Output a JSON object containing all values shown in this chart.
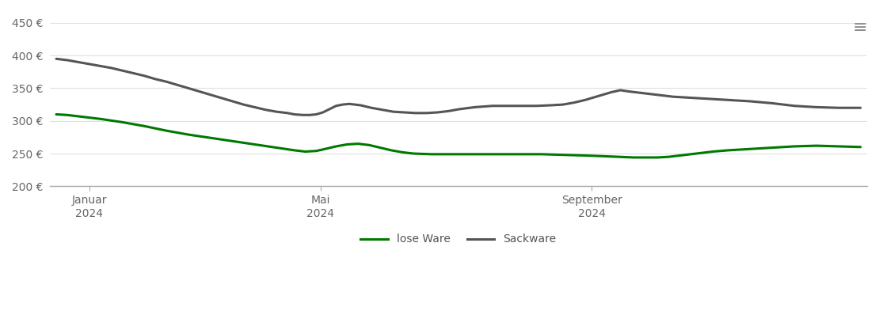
{
  "lose_ware": [
    [
      0,
      310
    ],
    [
      5,
      309
    ],
    [
      10,
      307
    ],
    [
      15,
      305
    ],
    [
      20,
      303
    ],
    [
      30,
      298
    ],
    [
      40,
      292
    ],
    [
      50,
      285
    ],
    [
      60,
      279
    ],
    [
      70,
      274
    ],
    [
      80,
      269
    ],
    [
      90,
      264
    ],
    [
      100,
      259
    ],
    [
      108,
      255
    ],
    [
      113,
      253
    ],
    [
      118,
      254
    ],
    [
      122,
      257
    ],
    [
      127,
      261
    ],
    [
      132,
      264
    ],
    [
      137,
      265
    ],
    [
      142,
      263
    ],
    [
      147,
      259
    ],
    [
      152,
      255
    ],
    [
      157,
      252
    ],
    [
      162,
      250
    ],
    [
      170,
      249
    ],
    [
      180,
      249
    ],
    [
      190,
      249
    ],
    [
      200,
      249
    ],
    [
      210,
      249
    ],
    [
      220,
      249
    ],
    [
      230,
      248
    ],
    [
      240,
      247
    ],
    [
      248,
      246
    ],
    [
      255,
      245
    ],
    [
      262,
      244
    ],
    [
      268,
      244
    ],
    [
      273,
      244
    ],
    [
      278,
      245
    ],
    [
      283,
      247
    ],
    [
      288,
      249
    ],
    [
      293,
      251
    ],
    [
      298,
      253
    ],
    [
      305,
      255
    ],
    [
      315,
      257
    ],
    [
      325,
      259
    ],
    [
      335,
      261
    ],
    [
      345,
      262
    ],
    [
      355,
      261
    ],
    [
      365,
      260
    ]
  ],
  "sackware": [
    [
      0,
      395
    ],
    [
      5,
      393
    ],
    [
      10,
      390
    ],
    [
      15,
      387
    ],
    [
      20,
      384
    ],
    [
      25,
      381
    ],
    [
      30,
      377
    ],
    [
      35,
      373
    ],
    [
      40,
      369
    ],
    [
      45,
      364
    ],
    [
      50,
      360
    ],
    [
      55,
      355
    ],
    [
      60,
      350
    ],
    [
      65,
      345
    ],
    [
      70,
      340
    ],
    [
      75,
      335
    ],
    [
      80,
      330
    ],
    [
      85,
      325
    ],
    [
      90,
      321
    ],
    [
      95,
      317
    ],
    [
      100,
      314
    ],
    [
      105,
      312
    ],
    [
      108,
      310
    ],
    [
      112,
      309
    ],
    [
      115,
      309
    ],
    [
      118,
      310
    ],
    [
      121,
      313
    ],
    [
      124,
      318
    ],
    [
      127,
      323
    ],
    [
      130,
      325
    ],
    [
      133,
      326
    ],
    [
      138,
      324
    ],
    [
      143,
      320
    ],
    [
      148,
      317
    ],
    [
      153,
      314
    ],
    [
      158,
      313
    ],
    [
      163,
      312
    ],
    [
      168,
      312
    ],
    [
      173,
      313
    ],
    [
      178,
      315
    ],
    [
      183,
      318
    ],
    [
      190,
      321
    ],
    [
      198,
      323
    ],
    [
      208,
      323
    ],
    [
      218,
      323
    ],
    [
      225,
      324
    ],
    [
      230,
      325
    ],
    [
      235,
      328
    ],
    [
      240,
      332
    ],
    [
      245,
      337
    ],
    [
      248,
      340
    ],
    [
      252,
      344
    ],
    [
      256,
      347
    ],
    [
      260,
      345
    ],
    [
      265,
      343
    ],
    [
      270,
      341
    ],
    [
      275,
      339
    ],
    [
      280,
      337
    ],
    [
      285,
      336
    ],
    [
      290,
      335
    ],
    [
      295,
      334
    ],
    [
      305,
      332
    ],
    [
      315,
      330
    ],
    [
      325,
      327
    ],
    [
      335,
      323
    ],
    [
      345,
      321
    ],
    [
      355,
      320
    ],
    [
      365,
      320
    ]
  ],
  "ylim": [
    200,
    450
  ],
  "yticks": [
    200,
    250,
    300,
    350,
    400,
    450
  ],
  "jan_tick": 15,
  "mai_tick": 120,
  "sept_tick": 243,
  "xtick_labels": [
    "Januar\n2024",
    "Mai\n2024",
    "September\n2024"
  ],
  "lose_ware_color": "#007900",
  "sackware_color": "#555555",
  "grid_color": "#e0e0e0",
  "background_color": "#ffffff",
  "legend_lose_ware": "lose Ware",
  "legend_sackware": "Sackware",
  "line_width": 2.2,
  "xlim_min": -3,
  "xlim_max": 368
}
